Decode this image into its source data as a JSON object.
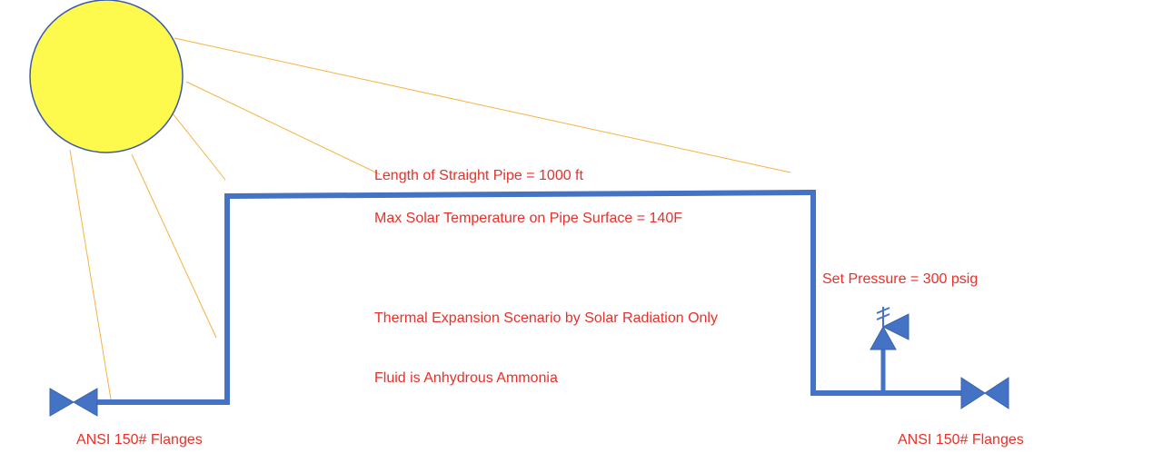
{
  "labels": {
    "pipe_length": "Length of Straight Pipe = 1000 ft",
    "max_temp": "Max Solar Temperature on Pipe Surface = 140F",
    "scenario": "Thermal Expansion Scenario by Solar Radiation Only",
    "fluid": "Fluid is Anhydrous Ammonia",
    "set_pressure": "Set Pressure = 300 psig",
    "left_flange": "ANSI 150# Flanges",
    "right_flange": "ANSI 150# Flanges"
  }
}
